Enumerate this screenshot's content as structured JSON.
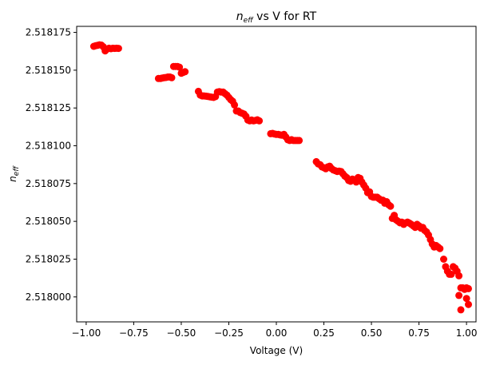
{
  "chart_data": {
    "type": "scatter",
    "title": {
      "main": "n",
      "subscript": "eff",
      "suffix": " vs V for RT"
    },
    "xlabel": "Voltage (V)",
    "ylabel": {
      "main": "n",
      "subscript": "eff"
    },
    "xlim": [
      -1.05,
      1.05
    ],
    "ylim": [
      2.5179835,
      2.518179
    ],
    "x_ticks": [
      -1.0,
      -0.75,
      -0.5,
      -0.25,
      0.0,
      0.25,
      0.5,
      0.75,
      1.0
    ],
    "x_tick_labels": [
      "−1.00",
      "−0.75",
      "−0.50",
      "−0.25",
      "0.00",
      "0.25",
      "0.50",
      "0.75",
      "1.00"
    ],
    "y_ticks": [
      2.518,
      2.518025,
      2.51805,
      2.518075,
      2.5181,
      2.518125,
      2.51815,
      2.518175
    ],
    "y_tick_labels": [
      "2.518000",
      "2.518025",
      "2.518050",
      "2.518075",
      "2.518100",
      "2.518125",
      "2.518150",
      "2.518175"
    ],
    "grid": false,
    "marker_color": "#ff0000",
    "x": [
      -0.96,
      -0.95,
      -0.94,
      -0.93,
      -0.92,
      -0.91,
      -0.9,
      -0.89,
      -0.88,
      -0.87,
      -0.86,
      -0.85,
      -0.84,
      -0.83,
      -0.62,
      -0.61,
      -0.6,
      -0.59,
      -0.58,
      -0.57,
      -0.56,
      -0.55,
      -0.54,
      -0.53,
      -0.52,
      -0.51,
      -0.5,
      -0.49,
      -0.48,
      -0.41,
      -0.4,
      -0.39,
      -0.38,
      -0.37,
      -0.36,
      -0.35,
      -0.34,
      -0.33,
      -0.32,
      -0.31,
      -0.3,
      -0.29,
      -0.28,
      -0.27,
      -0.26,
      -0.25,
      -0.24,
      -0.23,
      -0.22,
      -0.21,
      -0.2,
      -0.19,
      -0.18,
      -0.17,
      -0.16,
      -0.15,
      -0.14,
      -0.13,
      -0.12,
      -0.11,
      -0.1,
      -0.09,
      -0.03,
      -0.02,
      -0.01,
      0.0,
      0.01,
      0.02,
      0.03,
      0.04,
      0.05,
      0.06,
      0.07,
      0.08,
      0.09,
      0.1,
      0.11,
      0.12,
      0.21,
      0.22,
      0.23,
      0.24,
      0.25,
      0.26,
      0.27,
      0.28,
      0.29,
      0.3,
      0.31,
      0.32,
      0.33,
      0.34,
      0.35,
      0.36,
      0.37,
      0.38,
      0.39,
      0.4,
      0.41,
      0.42,
      0.43,
      0.44,
      0.45,
      0.46,
      0.47,
      0.48,
      0.49,
      0.5,
      0.51,
      0.52,
      0.53,
      0.54,
      0.55,
      0.56,
      0.57,
      0.58,
      0.59,
      0.6,
      0.61,
      0.62,
      0.63,
      0.64,
      0.65,
      0.66,
      0.67,
      0.68,
      0.69,
      0.7,
      0.71,
      0.72,
      0.73,
      0.74,
      0.75,
      0.76,
      0.77,
      0.78,
      0.79,
      0.8,
      0.81,
      0.82,
      0.83,
      0.84,
      0.85,
      0.86,
      0.88,
      0.89,
      0.9,
      0.91,
      0.92,
      0.93,
      0.94,
      0.95,
      0.96,
      0.97,
      0.98,
      0.99,
      1.0,
      1.01,
      0.96,
      0.97,
      1.0,
      1.01
    ],
    "y": [
      2.5181658,
      2.5181662,
      2.5181665,
      2.5181668,
      2.5181666,
      2.5181655,
      2.5181628,
      2.518164,
      2.5181645,
      2.5181642,
      2.5181645,
      2.5181644,
      2.5181645,
      2.5181644,
      2.5181445,
      2.5181445,
      2.5181448,
      2.518145,
      2.5181452,
      2.5181455,
      2.5181455,
      2.518145,
      2.5181525,
      2.5181525,
      2.5181525,
      2.518152,
      2.518148,
      2.5181485,
      2.518149,
      2.518136,
      2.5181335,
      2.518133,
      2.518133,
      2.5181328,
      2.5181326,
      2.5181324,
      2.5181322,
      2.518132,
      2.5181325,
      2.5181355,
      2.5181358,
      2.5181355,
      2.5181355,
      2.5181345,
      2.5181335,
      2.518132,
      2.5181305,
      2.5181295,
      2.518127,
      2.518123,
      2.518123,
      2.518122,
      2.5181215,
      2.518121,
      2.5181195,
      2.518117,
      2.5181165,
      2.518117,
      2.5181165,
      2.5181168,
      2.5181172,
      2.5181165,
      2.518108,
      2.5181082,
      2.5181078,
      2.5181075,
      2.5181075,
      2.5181072,
      2.518107,
      2.5181075,
      2.5181058,
      2.518104,
      2.5181035,
      2.518104,
      2.5181035,
      2.5181035,
      2.5181035,
      2.5181035,
      2.5180895,
      2.518088,
      2.5180875,
      2.518086,
      2.5180855,
      2.5180848,
      2.518086,
      2.5180865,
      2.518085,
      2.518084,
      2.5180835,
      2.518083,
      2.5180832,
      2.518083,
      2.5180815,
      2.51808,
      2.518079,
      2.518077,
      2.5180765,
      2.518078,
      2.5180775,
      2.518076,
      2.518079,
      2.5180785,
      2.518076,
      2.518074,
      2.518072,
      2.518069,
      2.5180695,
      2.5180665,
      2.518066,
      2.518066,
      2.518066,
      2.518065,
      2.518064,
      2.518064,
      2.518062,
      2.518063,
      2.518061,
      2.51806,
      2.518052,
      2.518054,
      2.518051,
      2.51805,
      2.518049,
      2.5180495,
      2.518048,
      2.518049,
      2.5180495,
      2.5180488,
      2.518048,
      2.518047,
      2.518046,
      2.518048,
      2.518047,
      2.5180455,
      2.518046,
      2.518044,
      2.518043,
      2.518041,
      2.518038,
      2.518035,
      2.518033,
      2.518034,
      2.518033,
      2.518032,
      2.518025,
      2.51802,
      2.518017,
      2.518015,
      2.518015,
      2.51802,
      2.518019,
      2.518017,
      2.518014,
      2.518006,
      2.518006,
      2.518005,
      2.518006,
      2.5180055,
      2.518001,
      2.5179915,
      2.517999,
      2.517995
    ]
  }
}
